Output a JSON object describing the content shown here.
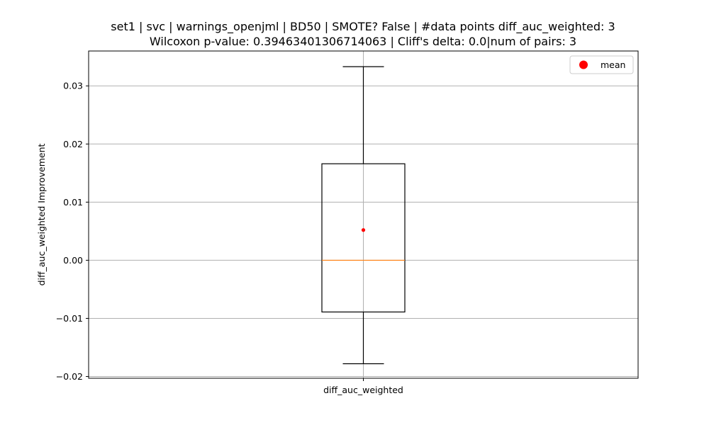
{
  "chart_data": {
    "type": "box",
    "title_line1": "set1 | svc | warnings_openjml | BD50 | SMOTE? False | #data points diff_auc_weighted: 3",
    "title_line2": "Wilcoxon p-value: 0.39463401306714063 | Cliff's delta: 0.0|num of pairs: 3",
    "ylabel": "diff_auc_weighted Improvement",
    "categories": [
      "diff_auc_weighted"
    ],
    "ylim": [
      -0.0203,
      0.036
    ],
    "yticks": [
      -0.02,
      -0.01,
      0.0,
      0.01,
      0.02,
      0.03
    ],
    "ytick_labels": [
      "−0.02",
      "−0.01",
      "0.00",
      "0.01",
      "0.02",
      "0.03"
    ],
    "grid": true,
    "box": {
      "whisker_low": -0.0178,
      "q1": -0.0089,
      "median": 0.0,
      "q3": 0.0166,
      "whisker_high": 0.0333,
      "mean": 0.0052
    },
    "legend": {
      "label": "mean",
      "position": "top-right"
    },
    "colors": {
      "median": "#ff7f0e",
      "mean": "#ff0000",
      "grid": "#b0b0b0"
    }
  }
}
